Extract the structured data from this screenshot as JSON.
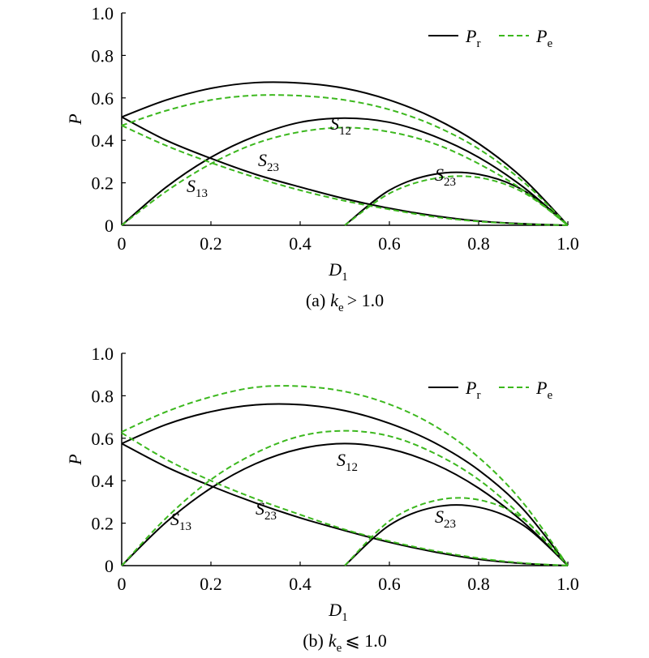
{
  "chart_data": [
    {
      "type": "line",
      "caption": {
        "prefix": "(a)",
        "var": "k",
        "sub": "e",
        "rest": "> 1.0"
      },
      "x_label": {
        "text": "D",
        "sub": "1"
      },
      "y_label": "P",
      "xlim": [
        0,
        1
      ],
      "ylim": [
        0,
        1
      ],
      "xticks": [
        0,
        0.2,
        0.4,
        0.6,
        0.8,
        {
          "value": 1,
          "label": "1.0"
        }
      ],
      "yticks": [
        0,
        0.2,
        0.4,
        0.6,
        0.8,
        {
          "value": 1,
          "label": "1.0"
        }
      ],
      "legend": [
        {
          "name": "P",
          "sub": "r",
          "color": "#000000",
          "dashed": false
        },
        {
          "name": "P",
          "sub": "e",
          "color": "#3cb81e",
          "dashed": true
        }
      ],
      "annotations": [
        {
          "text": "S",
          "sub": "12"
        },
        {
          "text": "S",
          "sub": "23"
        },
        {
          "text": "S",
          "sub": "13"
        },
        {
          "text": "S",
          "sub": "23"
        }
      ],
      "x": [
        0,
        0.1,
        0.2,
        0.3,
        0.4,
        0.5,
        0.6,
        0.7,
        0.8,
        0.9,
        1
      ],
      "series": [
        {
          "color": "#000000",
          "dashed": false,
          "values": [
            0.51,
            0.59,
            0.645,
            0.672,
            0.67,
            0.645,
            0.59,
            0.505,
            0.385,
            0.22,
            0
          ]
        },
        {
          "color": "#000000",
          "dashed": false,
          "values": [
            0,
            0.18,
            0.32,
            0.42,
            0.485,
            0.505,
            0.485,
            0.42,
            0.32,
            0.18,
            0
          ]
        },
        {
          "color": "#000000",
          "dashed": false,
          "values": [
            0.51,
            0.4,
            0.315,
            0.24,
            0.18,
            0.125,
            0.08,
            0.045,
            0.02,
            0.007,
            0
          ]
        },
        {
          "color": "#000000",
          "dashed": false,
          "values": [
            null,
            null,
            null,
            null,
            null,
            0,
            0.165,
            0.24,
            0.24,
            0.165,
            0
          ]
        },
        {
          "color": "#3cb81e",
          "dashed": true,
          "values": [
            0.47,
            0.54,
            0.59,
            0.612,
            0.61,
            0.59,
            0.545,
            0.47,
            0.36,
            0.205,
            0
          ]
        },
        {
          "color": "#3cb81e",
          "dashed": true,
          "values": [
            0,
            0.16,
            0.29,
            0.385,
            0.44,
            0.46,
            0.44,
            0.385,
            0.29,
            0.165,
            0
          ]
        },
        {
          "color": "#3cb81e",
          "dashed": true,
          "values": [
            0.47,
            0.375,
            0.295,
            0.225,
            0.165,
            0.115,
            0.075,
            0.04,
            0.018,
            0.006,
            0
          ]
        },
        {
          "color": "#3cb81e",
          "dashed": true,
          "values": [
            null,
            null,
            null,
            null,
            null,
            0,
            0.15,
            0.22,
            0.225,
            0.155,
            0
          ]
        }
      ]
    },
    {
      "type": "line",
      "caption": {
        "prefix": "(b)",
        "var": "k",
        "sub": "e",
        "rest": "⩽ 1.0"
      },
      "x_label": {
        "text": "D",
        "sub": "1"
      },
      "y_label": "P",
      "xlim": [
        0,
        1
      ],
      "ylim": [
        0,
        1
      ],
      "xticks": [
        0,
        0.2,
        0.4,
        0.6,
        0.8,
        {
          "value": 1,
          "label": "1.0"
        }
      ],
      "yticks": [
        0,
        0.2,
        0.4,
        0.6,
        0.8,
        {
          "value": 1,
          "label": "1.0"
        }
      ],
      "legend": [
        {
          "name": "P",
          "sub": "r",
          "color": "#000000",
          "dashed": false
        },
        {
          "name": "P",
          "sub": "e",
          "color": "#3cb81e",
          "dashed": true
        }
      ],
      "annotations": [
        {
          "text": "S",
          "sub": "12"
        },
        {
          "text": "S",
          "sub": "23"
        },
        {
          "text": "S",
          "sub": "13"
        },
        {
          "text": "S",
          "sub": "23"
        }
      ],
      "x": [
        0,
        0.1,
        0.2,
        0.3,
        0.4,
        0.5,
        0.6,
        0.7,
        0.8,
        0.9,
        1
      ],
      "series": [
        {
          "color": "#000000",
          "dashed": false,
          "values": [
            0.575,
            0.665,
            0.725,
            0.757,
            0.758,
            0.73,
            0.67,
            0.58,
            0.45,
            0.265,
            0
          ]
        },
        {
          "color": "#000000",
          "dashed": false,
          "values": [
            0,
            0.205,
            0.365,
            0.48,
            0.55,
            0.575,
            0.55,
            0.48,
            0.365,
            0.205,
            0
          ]
        },
        {
          "color": "#000000",
          "dashed": false,
          "values": [
            0.575,
            0.465,
            0.375,
            0.295,
            0.225,
            0.165,
            0.11,
            0.065,
            0.03,
            0.01,
            0
          ]
        },
        {
          "color": "#000000",
          "dashed": false,
          "values": [
            null,
            null,
            null,
            null,
            null,
            0,
            0.19,
            0.275,
            0.275,
            0.19,
            0
          ]
        },
        {
          "color": "#3cb81e",
          "dashed": true,
          "values": [
            0.63,
            0.725,
            0.795,
            0.84,
            0.845,
            0.82,
            0.76,
            0.66,
            0.51,
            0.295,
            0
          ]
        },
        {
          "color": "#3cb81e",
          "dashed": true,
          "values": [
            0,
            0.225,
            0.405,
            0.53,
            0.61,
            0.635,
            0.61,
            0.53,
            0.405,
            0.225,
            0
          ]
        },
        {
          "color": "#3cb81e",
          "dashed": true,
          "values": [
            0.625,
            0.5,
            0.4,
            0.315,
            0.24,
            0.17,
            0.115,
            0.07,
            0.035,
            0.012,
            0
          ]
        },
        {
          "color": "#3cb81e",
          "dashed": true,
          "values": [
            null,
            null,
            null,
            null,
            null,
            0,
            0.21,
            0.305,
            0.31,
            0.22,
            0
          ]
        }
      ]
    }
  ]
}
